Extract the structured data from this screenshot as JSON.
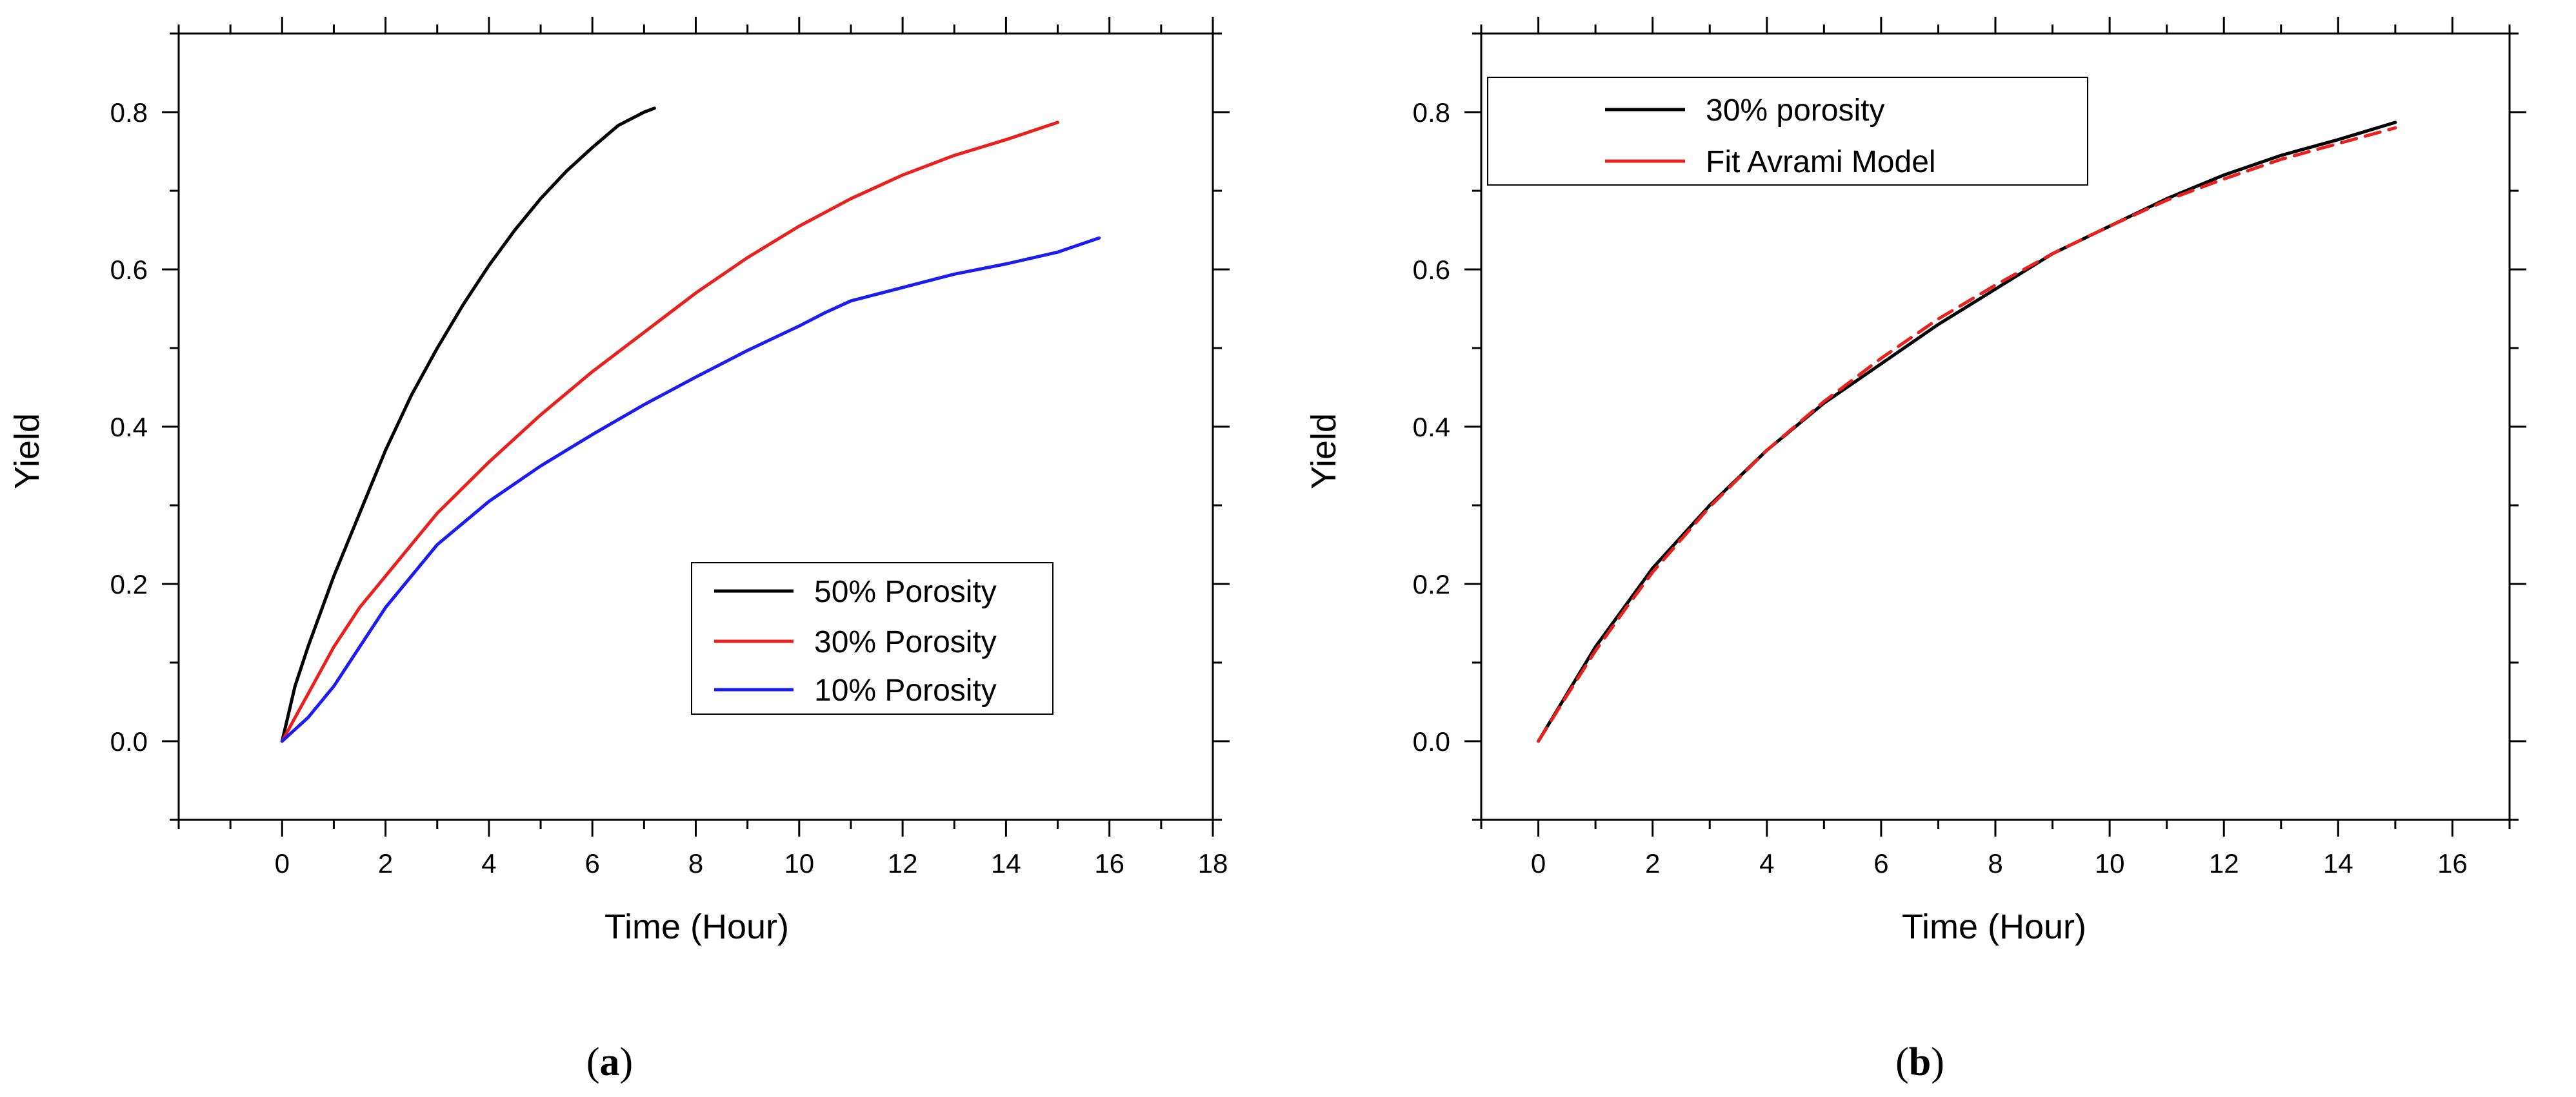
{
  "chart_data": [
    {
      "type": "line",
      "panel_label": "a",
      "xlabel": "Time (Hour)",
      "ylabel": "Yield",
      "xlim": [
        -2,
        18
      ],
      "ylim": [
        -0.1,
        0.9
      ],
      "xticks": [
        0,
        2,
        4,
        6,
        8,
        10,
        12,
        14,
        16,
        18
      ],
      "yticks": [
        0.0,
        0.2,
        0.4,
        0.6,
        0.8
      ],
      "xtick_labels": [
        "0",
        "2",
        "4",
        "6",
        "8",
        "10",
        "12",
        "14",
        "16",
        "18"
      ],
      "ytick_labels": [
        "0.0",
        "0.2",
        "0.4",
        "0.6",
        "0.8"
      ],
      "grid": false,
      "legend_position": "bottom-right",
      "series": [
        {
          "name": "50% Porosity",
          "color": "#000000",
          "style": "solid",
          "x": [
            0,
            0.25,
            0.5,
            1,
            1.5,
            2,
            2.5,
            3,
            3.5,
            4,
            4.5,
            5,
            5.5,
            6,
            6.5,
            7,
            7.2
          ],
          "y": [
            0,
            0.07,
            0.12,
            0.21,
            0.29,
            0.37,
            0.44,
            0.5,
            0.555,
            0.605,
            0.65,
            0.69,
            0.725,
            0.755,
            0.783,
            0.8,
            0.805
          ]
        },
        {
          "name": "30% Porosity",
          "color": "#e8211e",
          "style": "solid",
          "x": [
            0,
            0.5,
            1,
            1.5,
            2,
            3,
            4,
            5,
            6,
            7,
            8,
            9,
            10,
            11,
            12,
            13,
            14,
            15
          ],
          "y": [
            0,
            0.06,
            0.12,
            0.17,
            0.21,
            0.29,
            0.355,
            0.415,
            0.47,
            0.52,
            0.57,
            0.615,
            0.655,
            0.69,
            0.72,
            0.745,
            0.765,
            0.787
          ]
        },
        {
          "name": "10% Porosity",
          "color": "#1c1cf0",
          "style": "solid",
          "x": [
            0,
            0.5,
            1,
            1.5,
            2,
            3,
            4,
            5,
            6,
            7,
            8,
            9,
            10,
            10.5,
            11,
            12,
            13,
            14,
            15,
            15.8
          ],
          "y": [
            0,
            0.03,
            0.07,
            0.12,
            0.17,
            0.25,
            0.305,
            0.35,
            0.39,
            0.428,
            0.463,
            0.497,
            0.528,
            0.545,
            0.56,
            0.577,
            0.594,
            0.607,
            0.622,
            0.64
          ]
        }
      ]
    },
    {
      "type": "line",
      "panel_label": "b",
      "xlabel": "Time (Hour)",
      "ylabel": "Yield",
      "xlim": [
        -1,
        17
      ],
      "ylim": [
        -0.1,
        0.9
      ],
      "xticks": [
        0,
        2,
        4,
        6,
        8,
        10,
        12,
        14,
        16
      ],
      "yticks": [
        0.0,
        0.2,
        0.4,
        0.6,
        0.8
      ],
      "xtick_labels": [
        "0",
        "2",
        "4",
        "6",
        "8",
        "10",
        "12",
        "14",
        "16"
      ],
      "ytick_labels": [
        "0.0",
        "0.2",
        "0.4",
        "0.6",
        "0.8"
      ],
      "grid": false,
      "legend_position": "top-left",
      "series": [
        {
          "name": "30% porosity",
          "color": "#000000",
          "style": "solid",
          "x": [
            0,
            0.5,
            1,
            1.5,
            2,
            3,
            4,
            5,
            6,
            7,
            8,
            9,
            10,
            11,
            12,
            13,
            14,
            15
          ],
          "y": [
            0,
            0.06,
            0.12,
            0.17,
            0.22,
            0.3,
            0.37,
            0.43,
            0.48,
            0.53,
            0.575,
            0.62,
            0.655,
            0.69,
            0.72,
            0.745,
            0.765,
            0.787
          ]
        },
        {
          "name": "Fit Avrami Model",
          "color": "#e8211e",
          "style": "dashed",
          "x": [
            0,
            0.5,
            1,
            1.5,
            2,
            3,
            4,
            5,
            6,
            7,
            8,
            9,
            10,
            11,
            12,
            13,
            14,
            15
          ],
          "y": [
            0,
            0.058,
            0.115,
            0.166,
            0.215,
            0.298,
            0.37,
            0.432,
            0.487,
            0.537,
            0.58,
            0.62,
            0.655,
            0.688,
            0.715,
            0.74,
            0.76,
            0.78
          ]
        }
      ]
    }
  ]
}
